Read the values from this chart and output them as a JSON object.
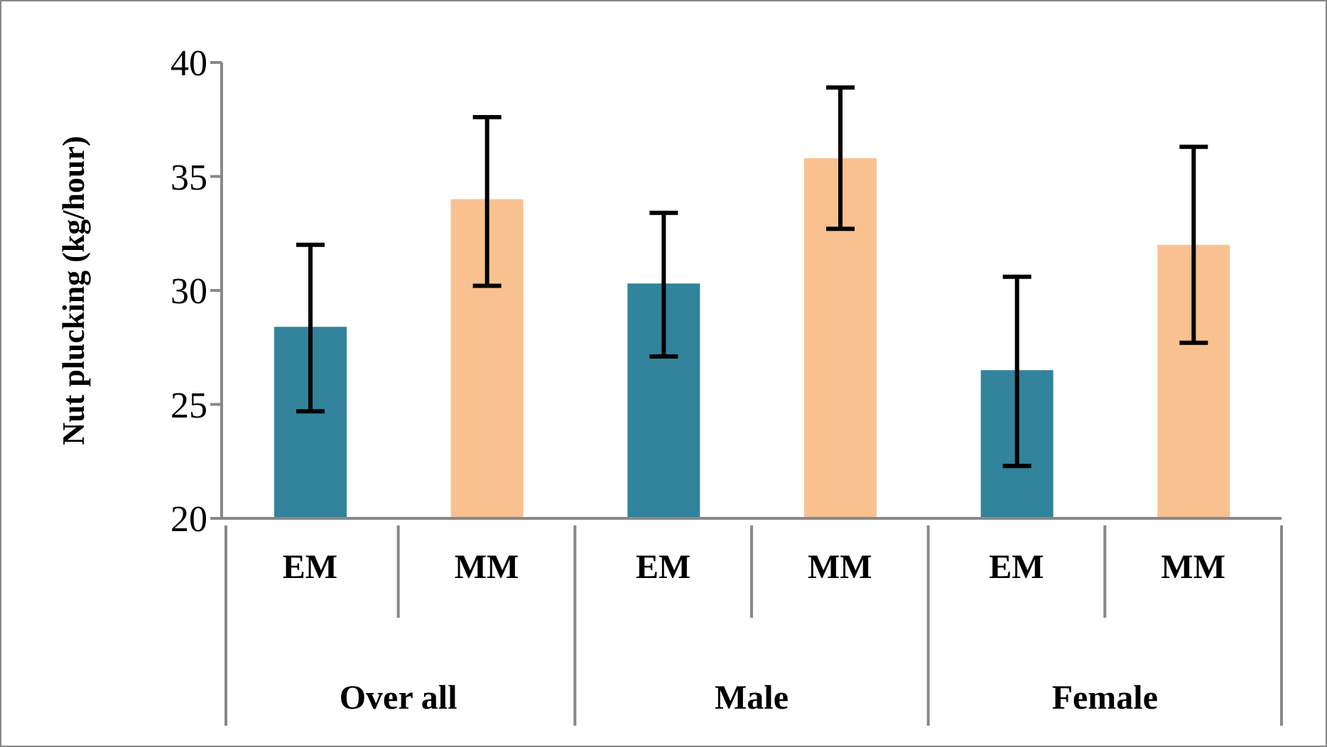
{
  "chart_data": {
    "type": "bar",
    "ylabel": "Nut plucking (kg/hour)",
    "categories": [
      "EM",
      "MM",
      "EM",
      "MM",
      "EM",
      "MM"
    ],
    "values": [
      28.4,
      34.0,
      30.3,
      35.8,
      26.5,
      32.0
    ],
    "colors": [
      "#31849b",
      "#f9c190",
      "#31849b",
      "#f9c190",
      "#31849b",
      "#f9c190"
    ],
    "errors": [
      [
        24.7,
        32.0
      ],
      [
        30.2,
        37.6
      ],
      [
        27.1,
        33.4
      ],
      [
        32.7,
        38.9
      ],
      [
        22.3,
        30.6
      ],
      [
        27.7,
        36.3
      ]
    ],
    "annotations": [
      "Over all",
      "Male",
      "Female"
    ],
    "ylim": [
      20,
      40
    ],
    "yticks": [
      20,
      25,
      30,
      35,
      40
    ],
    "grid": false,
    "legend": false
  }
}
